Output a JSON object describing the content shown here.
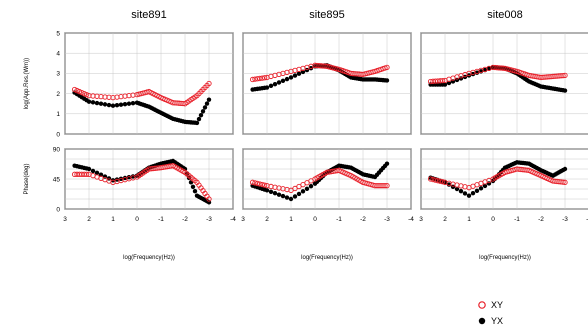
{
  "chart_data": {
    "type": "scatter",
    "sites": [
      "site891",
      "site895",
      "site008"
    ],
    "xlabel": "log(Frequency(Hz))",
    "xlim": [
      3,
      -4
    ],
    "x_ticks": [
      "3",
      "2",
      "1",
      "0",
      "-1",
      "-2",
      "-3",
      "-4"
    ],
    "rho_ylabel": "log(App.Res.(Wm))",
    "rho_ylim": [
      0,
      5
    ],
    "rho_ticks": [
      "0",
      "1",
      "2",
      "3",
      "4",
      "5"
    ],
    "phase_ylabel": "Phase(deg)",
    "phase_ylim": [
      0,
      90
    ],
    "phase_ticks": [
      "0",
      "45",
      "90"
    ],
    "grid": true,
    "legend_position": "bottom-right",
    "series": [
      {
        "name": "XY",
        "color": "#e8202a",
        "marker": "open-circle"
      },
      {
        "name": "YX",
        "color": "#000000",
        "marker": "filled-circle"
      }
    ],
    "curves": {
      "site891": {
        "rho_XY": [
          [
            2.6,
            2.2
          ],
          [
            2.0,
            1.9
          ],
          [
            1.0,
            1.8
          ],
          [
            0.0,
            1.95
          ],
          [
            -0.5,
            2.1
          ],
          [
            -1.0,
            1.8
          ],
          [
            -1.5,
            1.55
          ],
          [
            -2.0,
            1.5
          ],
          [
            -2.5,
            1.9
          ],
          [
            -3.0,
            2.5
          ]
        ],
        "rho_YX": [
          [
            2.6,
            2.05
          ],
          [
            2.0,
            1.6
          ],
          [
            1.0,
            1.4
          ],
          [
            0.0,
            1.55
          ],
          [
            -0.5,
            1.35
          ],
          [
            -1.0,
            1.05
          ],
          [
            -1.5,
            0.75
          ],
          [
            -2.0,
            0.6
          ],
          [
            -2.5,
            0.55
          ],
          [
            -3.0,
            1.7
          ]
        ],
        "phase_XY": [
          [
            2.6,
            52
          ],
          [
            2.0,
            52
          ],
          [
            1.0,
            40
          ],
          [
            0.0,
            48
          ],
          [
            -0.5,
            60
          ],
          [
            -1.0,
            62
          ],
          [
            -1.5,
            65
          ],
          [
            -2.0,
            55
          ],
          [
            -2.5,
            40
          ],
          [
            -3.0,
            15
          ]
        ],
        "phase_YX": [
          [
            2.6,
            65
          ],
          [
            2.0,
            60
          ],
          [
            1.0,
            43
          ],
          [
            0.0,
            50
          ],
          [
            -0.5,
            62
          ],
          [
            -1.0,
            68
          ],
          [
            -1.5,
            72
          ],
          [
            -2.0,
            60
          ],
          [
            -2.5,
            20
          ],
          [
            -3.0,
            10
          ]
        ]
      },
      "site895": {
        "rho_XY": [
          [
            2.6,
            2.7
          ],
          [
            2.0,
            2.8
          ],
          [
            1.0,
            3.1
          ],
          [
            0.0,
            3.4
          ],
          [
            -0.5,
            3.35
          ],
          [
            -1.0,
            3.2
          ],
          [
            -1.5,
            3.0
          ],
          [
            -2.0,
            2.95
          ],
          [
            -2.5,
            3.1
          ],
          [
            -3.0,
            3.3
          ]
        ],
        "rho_YX": [
          [
            2.6,
            2.2
          ],
          [
            2.0,
            2.3
          ],
          [
            1.0,
            2.8
          ],
          [
            0.0,
            3.35
          ],
          [
            -0.5,
            3.4
          ],
          [
            -1.0,
            3.15
          ],
          [
            -1.5,
            2.8
          ],
          [
            -2.0,
            2.7
          ],
          [
            -2.5,
            2.7
          ],
          [
            -3.0,
            2.65
          ]
        ],
        "phase_XY": [
          [
            2.6,
            40
          ],
          [
            2.0,
            35
          ],
          [
            1.0,
            28
          ],
          [
            0.0,
            45
          ],
          [
            -0.5,
            55
          ],
          [
            -1.0,
            58
          ],
          [
            -1.5,
            50
          ],
          [
            -2.0,
            40
          ],
          [
            -2.5,
            35
          ],
          [
            -3.0,
            35
          ]
        ],
        "phase_YX": [
          [
            2.6,
            35
          ],
          [
            2.0,
            28
          ],
          [
            1.0,
            15
          ],
          [
            0.0,
            38
          ],
          [
            -0.5,
            55
          ],
          [
            -1.0,
            65
          ],
          [
            -1.5,
            62
          ],
          [
            -2.0,
            52
          ],
          [
            -2.5,
            48
          ],
          [
            -3.0,
            68
          ]
        ]
      },
      "site008": {
        "rho_XY": [
          [
            2.6,
            2.6
          ],
          [
            2.0,
            2.65
          ],
          [
            1.0,
            3.0
          ],
          [
            0.0,
            3.3
          ],
          [
            -0.5,
            3.25
          ],
          [
            -1.0,
            3.1
          ],
          [
            -1.5,
            2.9
          ],
          [
            -2.0,
            2.8
          ],
          [
            -2.5,
            2.85
          ],
          [
            -3.0,
            2.9
          ]
        ],
        "rho_YX": [
          [
            2.6,
            2.45
          ],
          [
            2.0,
            2.45
          ],
          [
            1.0,
            2.9
          ],
          [
            0.0,
            3.3
          ],
          [
            -0.5,
            3.25
          ],
          [
            -1.0,
            3.0
          ],
          [
            -1.5,
            2.6
          ],
          [
            -2.0,
            2.35
          ],
          [
            -2.5,
            2.25
          ],
          [
            -3.0,
            2.15
          ]
        ],
        "phase_XY": [
          [
            2.6,
            45
          ],
          [
            2.0,
            40
          ],
          [
            1.0,
            32
          ],
          [
            0.0,
            45
          ],
          [
            -0.5,
            55
          ],
          [
            -1.0,
            60
          ],
          [
            -1.5,
            58
          ],
          [
            -2.0,
            50
          ],
          [
            -2.5,
            42
          ],
          [
            -3.0,
            40
          ]
        ],
        "phase_YX": [
          [
            2.6,
            47
          ],
          [
            2.0,
            40
          ],
          [
            1.0,
            20
          ],
          [
            0.0,
            42
          ],
          [
            -0.5,
            62
          ],
          [
            -1.0,
            70
          ],
          [
            -1.5,
            68
          ],
          [
            -2.0,
            58
          ],
          [
            -2.5,
            50
          ],
          [
            -3.0,
            60
          ]
        ]
      }
    }
  }
}
